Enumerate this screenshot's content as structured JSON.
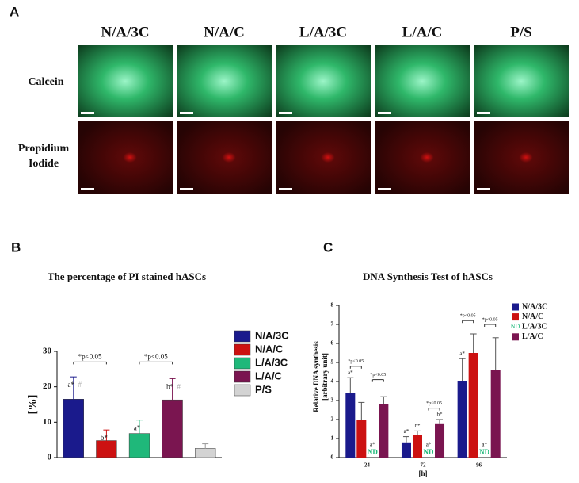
{
  "panel_a": {
    "label": "A",
    "columns": [
      "N/A/3C",
      "N/A/C",
      "L/A/3C",
      "L/A/C",
      "P/S"
    ],
    "rows": [
      [
        "Calcein"
      ],
      [
        "Propidium",
        "Iodide"
      ]
    ]
  },
  "chart_data": [
    {
      "panel": "B",
      "type": "bar",
      "title": "The percentage of PI stained hASCs",
      "y_label": "[%]",
      "categories": [
        "N/A/3C",
        "N/A/C",
        "L/A/3C",
        "L/A/C",
        "P/S"
      ],
      "values": [
        16.5,
        4.8,
        6.8,
        16.3,
        2.6
      ],
      "errors": [
        6.3,
        3.0,
        3.8,
        6.0,
        1.3
      ],
      "colors": [
        "#1a1a8c",
        "#cc1111",
        "#1fb87a",
        "#7a1550",
        "#d3d3d3"
      ],
      "ylim": [
        0,
        30
      ],
      "yticks": [
        0,
        10,
        20,
        30
      ],
      "legend": "right",
      "annotations": [
        "a*",
        "b*",
        "a*",
        "b*",
        null
      ],
      "marks": [
        "#",
        null,
        null,
        "#",
        null
      ],
      "significance": [
        {
          "label": "*p<0.05",
          "from": "N/A/3C",
          "to": "N/A/C",
          "y": 27
        },
        {
          "label": "*p<0.05",
          "from": "L/A/3C",
          "to": "L/A/C",
          "y": 27
        }
      ]
    },
    {
      "panel": "C",
      "type": "bar",
      "title": "DNA Synthesis Test of hASCs",
      "x_label": "[h]",
      "y_label": [
        "Relative DNA synthesis",
        "[arbitrary unit]"
      ],
      "categories": [
        "24",
        "72",
        "96"
      ],
      "series": [
        {
          "name": "N/A/3C",
          "color": "#1a1a8c",
          "values": [
            3.4,
            0.8,
            4.0
          ],
          "errors": [
            0.8,
            0.3,
            1.2
          ],
          "annotations": [
            "a*",
            "a*",
            "a*"
          ]
        },
        {
          "name": "N/A/C",
          "color": "#cc1111",
          "values": [
            2.0,
            1.2,
            5.5
          ],
          "errors": [
            0.9,
            0.2,
            1.0
          ],
          "annotations": [
            null,
            "b*",
            null
          ]
        },
        {
          "name": "L/A/3C",
          "color": "#1fb87a",
          "values": [
            null,
            null,
            null
          ],
          "value_labels": [
            "ND",
            "ND",
            "ND"
          ],
          "legend_symbol": "ND",
          "annotations": [
            "a*",
            "a*",
            "a*"
          ]
        },
        {
          "name": "L/A/C",
          "color": "#7a1550",
          "values": [
            2.8,
            1.8,
            4.6
          ],
          "errors": [
            0.4,
            0.2,
            1.7
          ],
          "annotations": [
            null,
            "b*",
            null
          ]
        }
      ],
      "ylim": [
        0,
        8
      ],
      "yticks": [
        0,
        1,
        2,
        3,
        4,
        5,
        6,
        7,
        8
      ],
      "legend": "right",
      "significance": [
        {
          "label": "*p<0.05",
          "category": "24",
          "from": "N/A/3C",
          "to": "N/A/C",
          "y": 4.8
        },
        {
          "label": "*p<0.05",
          "category": "24",
          "from": "L/A/3C",
          "to": "L/A/C",
          "y": 4.1
        },
        {
          "label": "*p<0.05",
          "category": "72",
          "from": "L/A/3C",
          "to": "L/A/C",
          "y": 2.6
        },
        {
          "label": "*p<0.05",
          "category": "96",
          "from": "N/A/3C",
          "to": "N/A/C",
          "y": 7.2
        },
        {
          "label": "*p<0.05",
          "category": "96",
          "from": "L/A/3C",
          "to": "L/A/C",
          "y": 7.0
        }
      ]
    }
  ]
}
